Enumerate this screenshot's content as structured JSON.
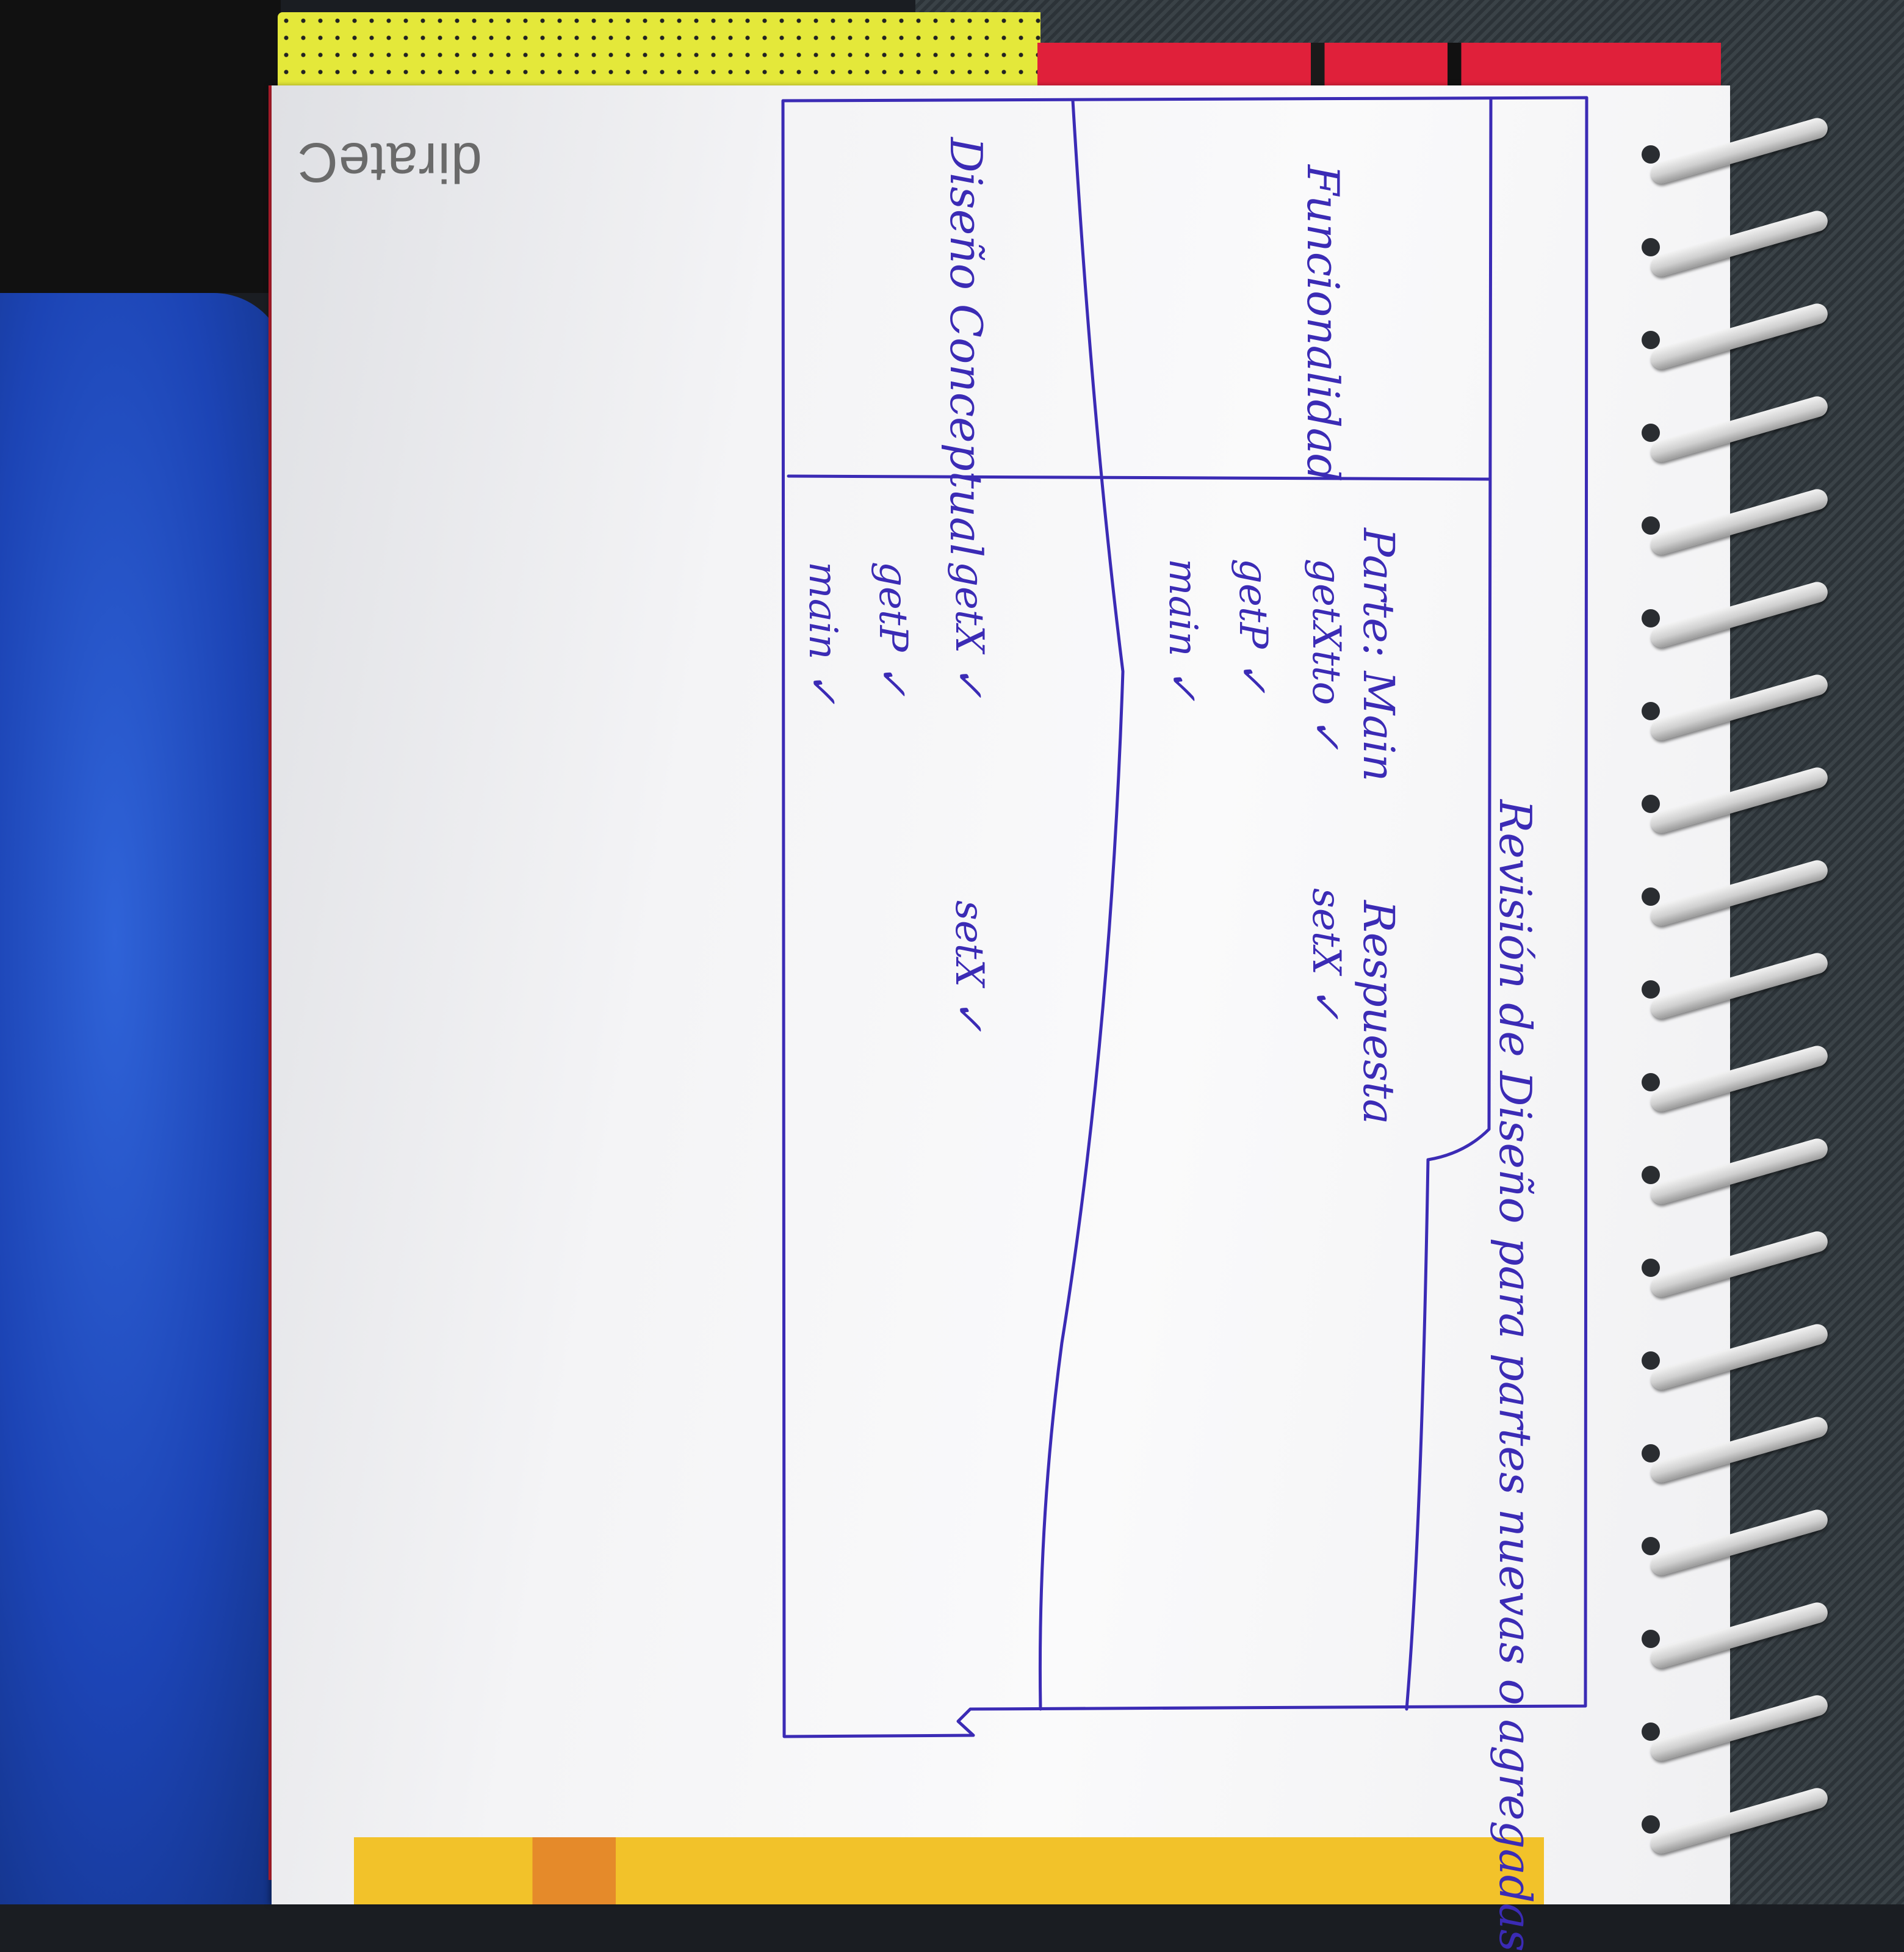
{
  "scene": {
    "title": "Revisión de Diseño para partes nuevas o agregadas",
    "headers": {
      "part": "Parte: Main",
      "response": "Respuesta"
    },
    "rows": [
      {
        "label": "Funcionalidad",
        "part_items": [
          "getXtto ✓",
          "getP ✓",
          "main ✓"
        ],
        "response_items": [
          "setX ✓"
        ]
      },
      {
        "label": "Diseño Conceptual",
        "part_items": [
          "getX ✓",
          "getP ✓",
          "main ✓"
        ],
        "response_items": [
          "setX ✓"
        ]
      }
    ],
    "brand_logo": "dirateC"
  },
  "colors": {
    "ink": "#3b2bb5",
    "paper": "#f6f6f7",
    "blue_cloth": "#1c44b5",
    "cover_yellow": "#e4e83a",
    "cover_red": "#e0203a"
  }
}
